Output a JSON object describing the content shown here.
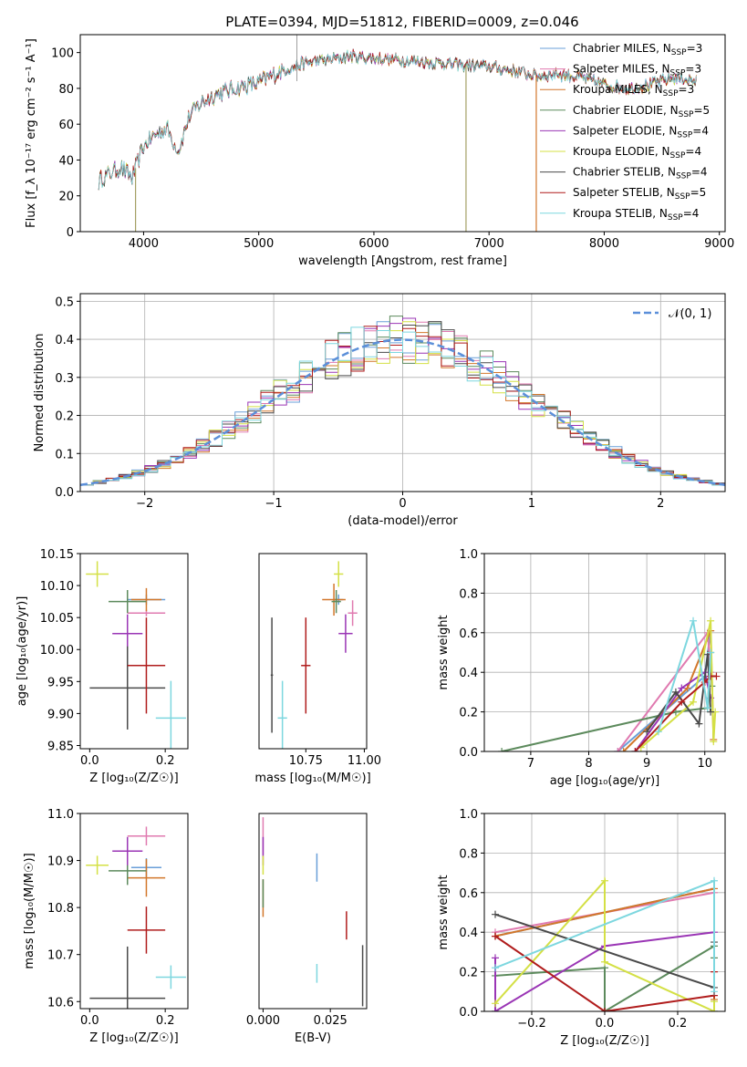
{
  "colors": [
    "#6a9fd8",
    "#e07ab0",
    "#d2772b",
    "#5c8a5c",
    "#9a35b5",
    "#d4e045",
    "#4a4a4a",
    "#b01c1c",
    "#7dd7df"
  ],
  "chart_data": [
    {
      "id": "spectrum",
      "type": "line",
      "title": "PLATE=0394, MJD=51812, FIBERID=0009, z=0.046",
      "xlabel": "wavelength [Angstrom, rest frame]",
      "ylabel": "Flux [f_λ 10⁻¹⁷ erg cm⁻² s⁻¹ A⁻¹]",
      "xlim": [
        3450,
        9050
      ],
      "ylim": [
        0,
        110
      ],
      "xticks": [
        4000,
        5000,
        6000,
        7000,
        8000,
        9000
      ],
      "yticks": [
        0,
        20,
        40,
        60,
        80,
        100
      ],
      "grid": false,
      "legend_position": "top-right",
      "series": [
        {
          "name": "Chabrier MILES, N_SSP=3"
        },
        {
          "name": "Salpeter MILES, N_SSP=3"
        },
        {
          "name": "Kroupa MILES, N_SSP=3"
        },
        {
          "name": "Chabrier ELODIE, N_SSP=5"
        },
        {
          "name": "Salpeter ELODIE, N_SSP=4"
        },
        {
          "name": "Kroupa ELODIE, N_SSP=4"
        },
        {
          "name": "Chabrier STELIB, N_SSP=4"
        },
        {
          "name": "Salpeter STELIB, N_SSP=5"
        },
        {
          "name": "Kroupa STELIB, N_SSP=4"
        }
      ],
      "continuum": {
        "x": [
          3600,
          3700,
          3800,
          3900,
          4000,
          4100,
          4200,
          4300,
          4400,
          4500,
          4600,
          4800,
          5000,
          5200,
          5400,
          5600,
          5800,
          6000,
          6200,
          6400,
          6600,
          6800,
          7000,
          7200,
          7400,
          7600,
          7800,
          8000,
          8200,
          8400,
          8600,
          8800
        ],
        "y": [
          28,
          32,
          36,
          30,
          48,
          54,
          58,
          45,
          65,
          72,
          76,
          80,
          83,
          90,
          94,
          96,
          98,
          97,
          96,
          95,
          94,
          93,
          92,
          90,
          87,
          88,
          86,
          82,
          80,
          82,
          86,
          84
        ]
      },
      "spikes": [
        {
          "x": 3930,
          "y": 0
        },
        {
          "x": 6800,
          "y": 0
        },
        {
          "x": 7410,
          "y": 0
        }
      ]
    },
    {
      "id": "residuals",
      "type": "line",
      "xlabel": "(data-model)/error",
      "ylabel": "Normed distribution",
      "xlim": [
        -2.5,
        2.5
      ],
      "ylim": [
        0,
        0.52
      ],
      "xticks": [
        -2,
        -1,
        0,
        1,
        2
      ],
      "yticks": [
        0.0,
        0.1,
        0.2,
        0.3,
        0.4,
        0.5
      ],
      "grid": true,
      "legend_position": "top-right",
      "legend": "𝒩(0, 1)",
      "gaussian": {
        "mean": 0,
        "sigma": 1
      }
    },
    {
      "id": "age_vs_Z",
      "type": "scatter",
      "xlabel": "Z [log₁₀(Z/Z☉)]",
      "ylabel": "age  [log₁₀(age/yr)]",
      "xlim": [
        -0.025,
        0.26
      ],
      "ylim": [
        9.845,
        10.15
      ],
      "xticks": [
        0.0,
        0.2
      ],
      "yticks": [
        9.85,
        9.9,
        9.95,
        10.0,
        10.05,
        10.1,
        10.15
      ],
      "points": [
        {
          "x": 0.15,
          "y": 10.078,
          "ex": 0.05,
          "ey": 0.008
        },
        {
          "x": 0.15,
          "y": 10.057,
          "ex": 0.05,
          "ey": 0.005
        },
        {
          "x": 0.15,
          "y": 10.078,
          "ex": 0.04,
          "ey": 0.018
        },
        {
          "x": 0.1,
          "y": 10.075,
          "ex": 0.05,
          "ey": 0.018
        },
        {
          "x": 0.1,
          "y": 10.025,
          "ex": 0.04,
          "ey": 0.03
        },
        {
          "x": 0.02,
          "y": 10.118,
          "ex": 0.03,
          "ey": 0.02
        },
        {
          "x": 0.1,
          "y": 9.94,
          "ex": 0.1,
          "ey": 0.065
        },
        {
          "x": 0.15,
          "y": 9.975,
          "ex": 0.05,
          "ey": 0.075
        },
        {
          "x": 0.215,
          "y": 9.893,
          "ex": 0.04,
          "ey": 0.058
        }
      ]
    },
    {
      "id": "age_vs_mass",
      "type": "scatter",
      "xlabel": "mass [log₁₀(M/M☉)]",
      "xlim": [
        10.55,
        11.01
      ],
      "ylim": [
        9.845,
        10.15
      ],
      "xticks": [
        10.75,
        11.0
      ],
      "points": [
        {
          "x": 10.89,
          "y": 10.078,
          "ex": 0.02,
          "ey": 0.008
        },
        {
          "x": 10.95,
          "y": 10.057,
          "ex": 0.02,
          "ey": 0.02
        },
        {
          "x": 10.87,
          "y": 10.078,
          "ex": 0.05,
          "ey": 0.025
        },
        {
          "x": 10.88,
          "y": 10.075,
          "ex": 0.02,
          "ey": 0.018
        },
        {
          "x": 10.92,
          "y": 10.025,
          "ex": 0.03,
          "ey": 0.03
        },
        {
          "x": 10.89,
          "y": 10.118,
          "ex": 0.02,
          "ey": 0.02
        },
        {
          "x": 10.605,
          "y": 9.96,
          "ex": 0.005,
          "ey": 0.09
        },
        {
          "x": 10.75,
          "y": 9.975,
          "ex": 0.02,
          "ey": 0.075
        },
        {
          "x": 10.65,
          "y": 9.893,
          "ex": 0.02,
          "ey": 0.058
        }
      ]
    },
    {
      "id": "weight_vs_age",
      "type": "line",
      "xlabel": "age  [log₁₀(age/yr)]",
      "ylabel": "mass weight",
      "xlim": [
        6.2,
        10.35
      ],
      "ylim": [
        0,
        1
      ],
      "xticks": [
        7,
        8,
        9,
        10
      ],
      "yticks": [
        0.0,
        0.2,
        0.4,
        0.6,
        0.8,
        1.0
      ],
      "grid": true,
      "series": [
        {
          "x": [
            8.5,
            10.0,
            10.1
          ],
          "y": [
            0.0,
            0.38,
            0.61
          ]
        },
        {
          "x": [
            8.5,
            10.05,
            10.1
          ],
          "y": [
            0.0,
            0.6,
            0.4
          ]
        },
        {
          "x": [
            8.6,
            9.7,
            10.1,
            10.15
          ],
          "y": [
            0.0,
            0.32,
            0.61,
            0.06
          ]
        },
        {
          "x": [
            6.5,
            9.5,
            10.05,
            10.1,
            10.12
          ],
          "y": [
            0.0,
            0.2,
            0.22,
            0.5,
            0.33
          ]
        },
        {
          "x": [
            8.8,
            9.6,
            10.0,
            10.1
          ],
          "y": [
            0.0,
            0.32,
            0.4,
            0.27
          ]
        },
        {
          "x": [
            8.9,
            9.8,
            10.1,
            10.15,
            10.18
          ],
          "y": [
            0.02,
            0.25,
            0.66,
            0.05,
            0.2
          ]
        },
        {
          "x": [
            9.0,
            9.5,
            9.9,
            10.05,
            10.1
          ],
          "y": [
            0.1,
            0.3,
            0.14,
            0.49,
            0.2
          ]
        },
        {
          "x": [
            8.8,
            9.6,
            10.0,
            10.1,
            10.2
          ],
          "y": [
            0.0,
            0.25,
            0.35,
            0.38,
            0.38
          ]
        },
        {
          "x": [
            9.2,
            9.8,
            10.05,
            10.1
          ],
          "y": [
            0.1,
            0.66,
            0.22,
            0.5
          ]
        }
      ]
    },
    {
      "id": "mass_vs_Z",
      "type": "scatter",
      "xlabel": "Z [log₁₀(Z/Z☉)]",
      "ylabel": "mass [log₁₀(M/M☉)]",
      "xlim": [
        -0.025,
        0.26
      ],
      "ylim": [
        10.585,
        11.0
      ],
      "xticks": [
        0.0,
        0.2
      ],
      "yticks": [
        10.6,
        10.7,
        10.8,
        10.9,
        11.0
      ],
      "points": [
        {
          "x": 0.15,
          "y": 10.885,
          "ex": 0.04,
          "ey": 0.02
        },
        {
          "x": 0.15,
          "y": 10.952,
          "ex": 0.05,
          "ey": 0.02
        },
        {
          "x": 0.15,
          "y": 10.863,
          "ex": 0.05,
          "ey": 0.04
        },
        {
          "x": 0.1,
          "y": 10.878,
          "ex": 0.05,
          "ey": 0.03
        },
        {
          "x": 0.1,
          "y": 10.92,
          "ex": 0.04,
          "ey": 0.03
        },
        {
          "x": 0.02,
          "y": 10.89,
          "ex": 0.03,
          "ey": 0.02
        },
        {
          "x": 0.1,
          "y": 10.607,
          "ex": 0.1,
          "ey": 0.11
        },
        {
          "x": 0.15,
          "y": 10.752,
          "ex": 0.05,
          "ey": 0.05
        },
        {
          "x": 0.215,
          "y": 10.652,
          "ex": 0.04,
          "ey": 0.025
        }
      ]
    },
    {
      "id": "mass_vs_ebv",
      "type": "scatter",
      "xlabel": "E(B-V)",
      "xlim": [
        -0.0015,
        0.0385
      ],
      "ylim": [
        10.585,
        11.0
      ],
      "xticks": [
        0.0,
        0.025
      ],
      "points": [
        {
          "x": 0.02,
          "y": 10.885,
          "ex": 0,
          "ey": 0.03
        },
        {
          "x": 0.0,
          "y": 10.952,
          "ex": 0,
          "ey": 0.04
        },
        {
          "x": 0.0,
          "y": 10.82,
          "ex": 0,
          "ey": 0.04
        },
        {
          "x": 0.0,
          "y": 10.83,
          "ex": 0,
          "ey": 0.03
        },
        {
          "x": 0.0,
          "y": 10.92,
          "ex": 0,
          "ey": 0.03
        },
        {
          "x": 0.0,
          "y": 10.89,
          "ex": 0,
          "ey": 0.02
        },
        {
          "x": 0.037,
          "y": 10.655,
          "ex": 0,
          "ey": 0.065
        },
        {
          "x": 0.031,
          "y": 10.762,
          "ex": 0,
          "ey": 0.03
        },
        {
          "x": 0.02,
          "y": 10.66,
          "ex": 0,
          "ey": 0.02
        }
      ]
    },
    {
      "id": "weight_vs_Z",
      "type": "line",
      "xlabel": "Z [log₁₀(Z/Z☉)]",
      "ylabel": "mass weight",
      "xlim": [
        -0.33,
        0.33
      ],
      "ylim": [
        0,
        1
      ],
      "xticks": [
        -0.2,
        0.0,
        0.2
      ],
      "yticks": [
        0.0,
        0.2,
        0.4,
        0.6,
        0.8,
        1.0
      ],
      "grid": true,
      "series": [
        {
          "x": [
            -0.3,
            0.3,
            0.3
          ],
          "y": [
            0.38,
            0.62,
            0.0
          ]
        },
        {
          "x": [
            -0.3,
            0.3
          ],
          "y": [
            0.4,
            0.6
          ]
        },
        {
          "x": [
            -0.3,
            0.3,
            0.3
          ],
          "y": [
            0.38,
            0.62,
            0.06
          ]
        },
        {
          "x": [
            -0.3,
            -0.3,
            0.0,
            0.0,
            0.3,
            0.3
          ],
          "y": [
            0.0,
            0.18,
            0.22,
            0.0,
            0.33,
            0.27
          ]
        },
        {
          "x": [
            -0.3,
            -0.3,
            0.0,
            0.3
          ],
          "y": [
            0.27,
            0.0,
            0.33,
            0.4
          ]
        },
        {
          "x": [
            -0.3,
            0.0,
            0.0,
            0.3,
            0.3
          ],
          "y": [
            0.04,
            0.66,
            0.25,
            0.0,
            0.05
          ]
        },
        {
          "x": [
            -0.3,
            0.3,
            0.3
          ],
          "y": [
            0.49,
            0.12,
            0.35
          ]
        },
        {
          "x": [
            -0.3,
            -0.3,
            0.0,
            0.3,
            0.3
          ],
          "y": [
            0.38,
            0.38,
            0.0,
            0.08,
            0.2
          ]
        },
        {
          "x": [
            -0.3,
            0.3,
            0.3
          ],
          "y": [
            0.22,
            0.66,
            0.1
          ]
        }
      ]
    }
  ]
}
